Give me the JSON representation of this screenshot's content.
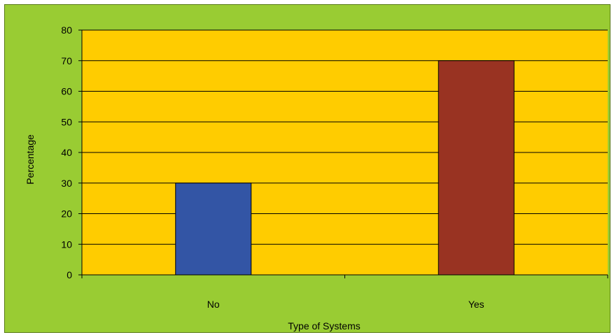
{
  "chart_data": {
    "type": "bar",
    "title": "",
    "xlabel": "Type of Systems",
    "ylabel": "Percentage",
    "categories": [
      "No",
      "Yes"
    ],
    "values": [
      30,
      70
    ],
    "ylim": [
      0,
      80
    ],
    "yticks": [
      "0",
      "10",
      "20",
      "30",
      "40",
      "50",
      "60",
      "70",
      "80"
    ],
    "grid": true,
    "legend": "none",
    "colors": {
      "background": "#99cc33",
      "plot_area": "#ffcc00",
      "gridline": "#000000",
      "bars": [
        "#3355a5",
        "#993322"
      ]
    }
  }
}
